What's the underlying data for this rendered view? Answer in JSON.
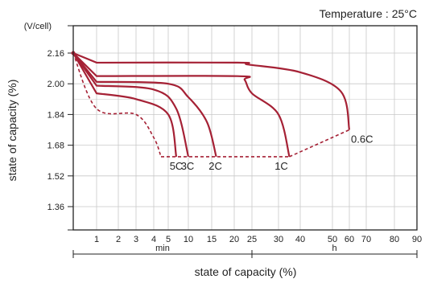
{
  "chart_data": {
    "type": "line",
    "title": "Temperature : 25°C",
    "xlabel": "state of capacity (%)",
    "ylabel": "state of capacity (%)",
    "y_unit": "(V/cell)",
    "ylim": [
      1.2,
      2.2
    ],
    "y_ticks": [
      "2.16",
      "2.00",
      "1.84",
      "1.68",
      "1.52",
      "1.36"
    ],
    "y_tick_values": [
      2.16,
      2.0,
      1.84,
      1.68,
      1.52,
      1.36
    ],
    "x_ticks": [
      "1",
      "2",
      "3",
      "4",
      "5",
      "10",
      "15",
      "20",
      "25",
      "30",
      "40",
      "50",
      "60",
      "70",
      "80",
      "90"
    ],
    "x_ranges": [
      {
        "label": "min",
        "from": "0",
        "to": "25"
      },
      {
        "label": "h",
        "from": "25",
        "to": "90"
      }
    ],
    "grid": true,
    "series": [
      {
        "name": "0.6C",
        "x": [
          "0",
          "1 min",
          "5 h",
          "20 h",
          "40 h",
          "55 h",
          "60 h"
        ],
        "y": [
          2.16,
          2.11,
          2.11,
          2.1,
          2.06,
          1.96,
          1.76
        ]
      },
      {
        "name": "1C",
        "x": [
          "0",
          "1 min",
          "5 h",
          "15 h",
          "25 h",
          "30 h",
          "35 h"
        ],
        "y": [
          2.16,
          2.04,
          2.04,
          2.02,
          1.95,
          1.84,
          1.62
        ]
      },
      {
        "name": "2C",
        "x": [
          "0",
          "1 min",
          "5 min",
          "10 min",
          "14 min",
          "16 min"
        ],
        "y": [
          2.16,
          2.01,
          2.0,
          1.93,
          1.8,
          1.62
        ]
      },
      {
        "name": "3C",
        "x": [
          "0",
          "1 min",
          "4 min",
          "7 min",
          "10 min"
        ],
        "y": [
          2.16,
          1.99,
          1.97,
          1.87,
          1.62
        ]
      },
      {
        "name": "5C",
        "x": [
          "0",
          "1 min",
          "3 min",
          "5 min",
          "7 min"
        ],
        "y": [
          2.16,
          1.95,
          1.92,
          1.84,
          1.62
        ]
      }
    ],
    "cutoff_dashed": {
      "x": [
        "0",
        "1 min",
        "3 min",
        "4 min",
        "4.5 min",
        "35 h",
        "60 h"
      ],
      "y": [
        2.16,
        1.87,
        1.84,
        1.72,
        1.62,
        1.62,
        1.76
      ]
    },
    "colors": {
      "curve": "#a52135",
      "axis": "#222222",
      "grid": "#c8c8c8"
    }
  }
}
